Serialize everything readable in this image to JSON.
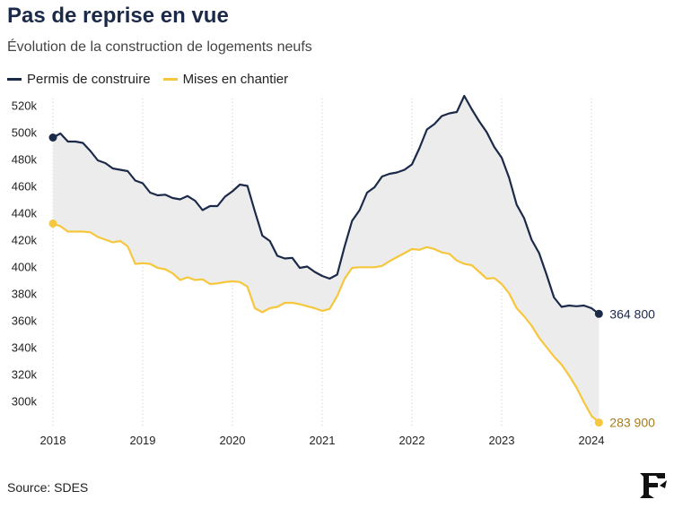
{
  "header": {
    "title": "Pas de reprise en vue",
    "subtitle": "Évolution de la construction de logements neufs"
  },
  "footer": {
    "source": "Source: SDES"
  },
  "colors": {
    "permis": "#1c2a4a",
    "mises": "#f5c73d",
    "fill": "#ececec",
    "grid": "#c8c8c8",
    "label_mises": "#a67c1a"
  },
  "logo": {
    "name": "le-figaro-logo"
  },
  "chart_data": {
    "type": "line",
    "title": "Pas de reprise en vue",
    "subtitle": "Évolution de la construction de logements neufs",
    "xlabel": "",
    "ylabel": "",
    "xlim": [
      2018.0,
      2024.0
    ],
    "ylim": [
      285000,
      525000
    ],
    "x_ticks": [
      2018,
      2019,
      2020,
      2021,
      2022,
      2023,
      2024
    ],
    "y_ticks": [
      300000,
      320000,
      340000,
      360000,
      380000,
      400000,
      420000,
      440000,
      460000,
      480000,
      500000,
      520000
    ],
    "y_tick_labels": [
      "300k",
      "320k",
      "340k",
      "360k",
      "380k",
      "400k",
      "420k",
      "440k",
      "460k",
      "480k",
      "500k",
      "520k"
    ],
    "grid": "vertical dotted",
    "legend_position": "top-left",
    "series": [
      {
        "name": "Permis de construire",
        "x": [
          2018.0,
          2018.083,
          2018.167,
          2018.25,
          2018.333,
          2018.417,
          2018.5,
          2018.583,
          2018.667,
          2018.75,
          2018.833,
          2018.917,
          2019.0,
          2019.083,
          2019.167,
          2019.25,
          2019.333,
          2019.417,
          2019.5,
          2019.583,
          2019.667,
          2019.75,
          2019.833,
          2019.917,
          2020.0,
          2020.083,
          2020.167,
          2020.25,
          2020.333,
          2020.417,
          2020.5,
          2020.583,
          2020.667,
          2020.75,
          2020.833,
          2020.917,
          2021.0,
          2021.083,
          2021.167,
          2021.25,
          2021.333,
          2021.417,
          2021.5,
          2021.583,
          2021.667,
          2021.75,
          2021.833,
          2021.917,
          2022.0,
          2022.083,
          2022.167,
          2022.25,
          2022.333,
          2022.417,
          2022.5,
          2022.583,
          2022.667,
          2022.75,
          2022.833,
          2022.917,
          2023.0,
          2023.083,
          2023.167,
          2023.25,
          2023.333,
          2023.417,
          2023.5,
          2023.583,
          2023.667,
          2023.75,
          2023.833,
          2023.917,
          2024.0,
          2024.083
        ],
        "values": [
          496000,
          499000,
          493000,
          493000,
          492000,
          486000,
          479000,
          477000,
          473000,
          472000,
          471000,
          464000,
          462000,
          455000,
          453000,
          453500,
          451000,
          450000,
          452500,
          449000,
          442000,
          445000,
          445000,
          452000,
          456000,
          461000,
          460000,
          441000,
          423000,
          419000,
          408000,
          406000,
          406500,
          399000,
          400000,
          396000,
          393000,
          391000,
          394000,
          415000,
          434000,
          442000,
          455000,
          459000,
          467000,
          469000,
          470000,
          472000,
          476000,
          488000,
          502000,
          506000,
          512000,
          514000,
          515000,
          527000,
          517000,
          508000,
          500000,
          489000,
          481000,
          466000,
          446000,
          436000,
          420000,
          410000,
          394000,
          377000,
          370000,
          371000,
          370500,
          371000,
          369000,
          364800
        ]
      },
      {
        "name": "Mises en chantier",
        "x": [
          2018.0,
          2018.083,
          2018.167,
          2018.25,
          2018.333,
          2018.417,
          2018.5,
          2018.583,
          2018.667,
          2018.75,
          2018.833,
          2018.917,
          2019.0,
          2019.083,
          2019.167,
          2019.25,
          2019.333,
          2019.417,
          2019.5,
          2019.583,
          2019.667,
          2019.75,
          2019.833,
          2019.917,
          2020.0,
          2020.083,
          2020.167,
          2020.25,
          2020.333,
          2020.417,
          2020.5,
          2020.583,
          2020.667,
          2020.75,
          2020.833,
          2020.917,
          2021.0,
          2021.083,
          2021.167,
          2021.25,
          2021.333,
          2021.417,
          2021.5,
          2021.583,
          2021.667,
          2021.75,
          2021.833,
          2021.917,
          2022.0,
          2022.083,
          2022.167,
          2022.25,
          2022.333,
          2022.417,
          2022.5,
          2022.583,
          2022.667,
          2022.75,
          2022.833,
          2022.917,
          2023.0,
          2023.083,
          2023.167,
          2023.25,
          2023.333,
          2023.417,
          2023.5,
          2023.583,
          2023.667,
          2023.75,
          2023.833,
          2023.917,
          2024.0,
          2024.083
        ],
        "values": [
          432000,
          430000,
          426000,
          426000,
          426000,
          425500,
          422000,
          420000,
          418000,
          419000,
          415000,
          402000,
          402500,
          402000,
          399000,
          398000,
          395000,
          390000,
          392000,
          390000,
          390500,
          387000,
          387500,
          388500,
          389000,
          388500,
          385000,
          369000,
          366000,
          369000,
          370000,
          373000,
          373000,
          372000,
          370500,
          369000,
          367000,
          368500,
          378000,
          391000,
          399000,
          399500,
          399500,
          399500,
          400500,
          404000,
          407000,
          410000,
          413000,
          412500,
          414500,
          413000,
          410500,
          409500,
          404500,
          402000,
          401000,
          396000,
          391000,
          391500,
          387000,
          380000,
          369000,
          363000,
          356000,
          347000,
          340000,
          333000,
          327000,
          319000,
          310000,
          299000,
          289000,
          283900
        ]
      }
    ],
    "end_labels": [
      {
        "series": "Permis de construire",
        "text": "364 800"
      },
      {
        "series": "Mises en chantier",
        "text": "283 900"
      }
    ]
  }
}
